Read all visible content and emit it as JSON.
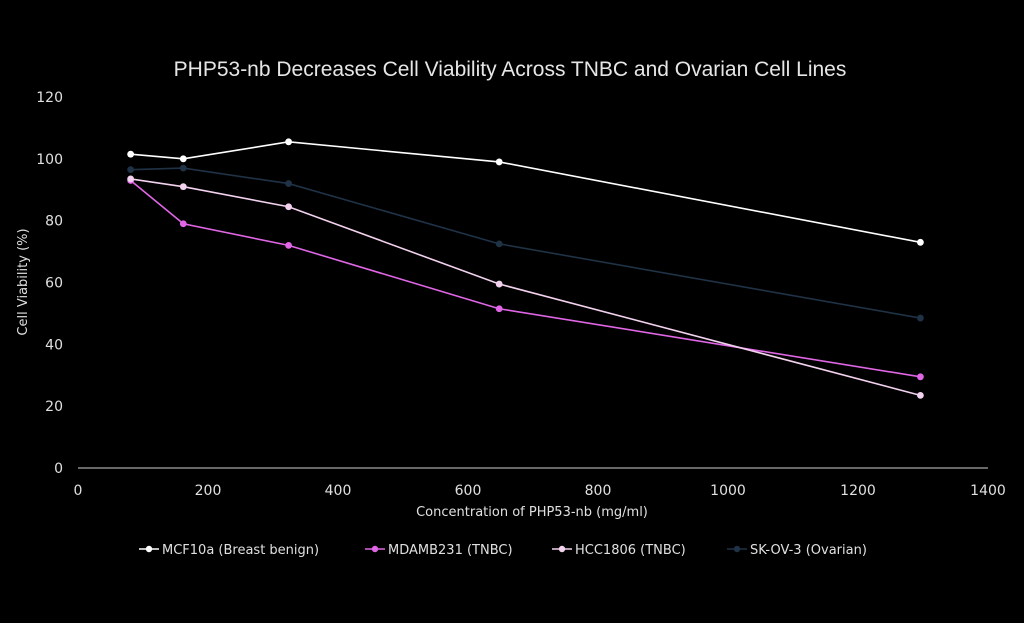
{
  "chart_data": {
    "type": "line",
    "title": "PHP53-nb Decreases Cell Viability Across TNBC and Ovarian Cell Lines",
    "xlabel": "Concentration of PHP53-nb  (mg/ml)",
    "ylabel": "Cell Viability (%)",
    "xlim": [
      0,
      1400
    ],
    "ylim": [
      0,
      120
    ],
    "xticks": [
      "0",
      "200",
      "400",
      "600",
      "800",
      "1000",
      "1200",
      "1400"
    ],
    "yticks": [
      "0",
      "20",
      "40",
      "60",
      "80",
      "100",
      "120"
    ],
    "grid": false,
    "legend_position": "bottom",
    "x": [
      81,
      162,
      324,
      648,
      1296
    ],
    "series": [
      {
        "name": "MCF10a (Breast benign)",
        "color": "#ffffff",
        "values": [
          101.5,
          100,
          105.5,
          99,
          73
        ]
      },
      {
        "name": "MDAMB231 (TNBC)",
        "color": "#e066e6",
        "values": [
          93,
          79,
          72,
          51.5,
          29.5
        ]
      },
      {
        "name": "HCC1806 (TNBC)",
        "color": "#f2d2ee",
        "values": [
          93.5,
          91,
          84.5,
          59.5,
          23.5
        ]
      },
      {
        "name": "SK-OV-3 (Ovarian)",
        "color": "#1f3246",
        "values": [
          96.5,
          97,
          92,
          72.5,
          48.5
        ]
      }
    ]
  }
}
